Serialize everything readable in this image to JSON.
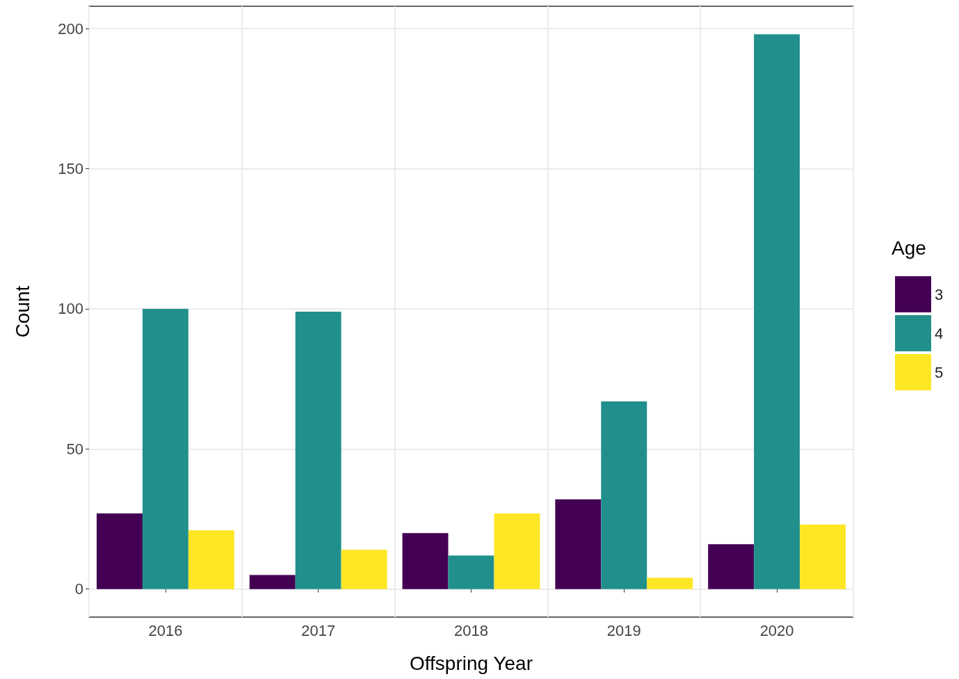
{
  "chart_data": {
    "type": "bar",
    "xlabel": "Offspring Year",
    "ylabel": "Count",
    "legend_title": "Age",
    "categories": [
      "2016",
      "2017",
      "2018",
      "2019",
      "2020"
    ],
    "series": [
      {
        "name": "3",
        "color": "#440154",
        "values": [
          27,
          5,
          20,
          32,
          16
        ]
      },
      {
        "name": "4",
        "color": "#21908c",
        "values": [
          100,
          99,
          12,
          67,
          198
        ]
      },
      {
        "name": "5",
        "color": "#fde725",
        "values": [
          21,
          14,
          27,
          4,
          23
        ]
      }
    ],
    "ylim": [
      -10,
      208
    ],
    "yticks": [
      0,
      50,
      100,
      150,
      200
    ],
    "grid": true,
    "legend": "right"
  }
}
